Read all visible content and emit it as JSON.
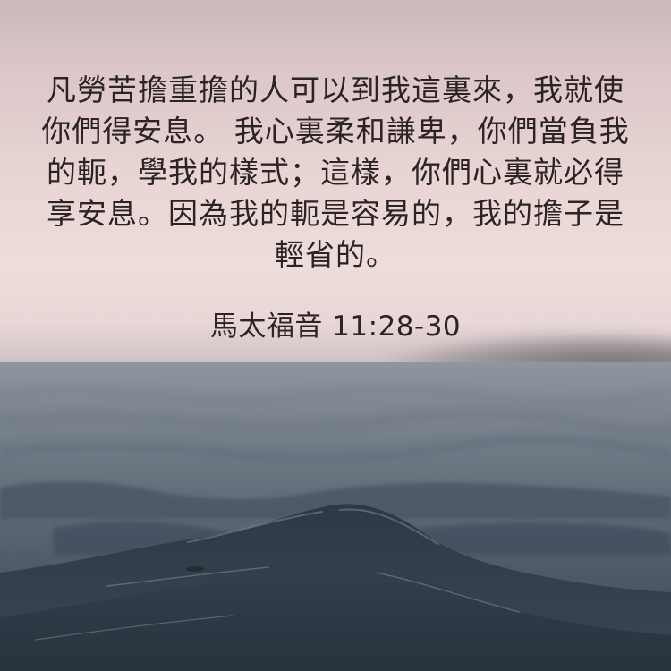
{
  "verse": {
    "text": "凡勞苦擔重擔的人可以到我這裏來，我就使你們得安息。 我心裏柔和謙卑，你們當負我的軛，學我的樣式；這樣，你們心裏就必得享安息。因為我的軛是容易的，我的擔子是輕省的。",
    "reference": "馬太福音 11:28-30"
  },
  "scene": {
    "background": "ocean-waves-at-dusk-photo",
    "sky_color": "#e8d4d3",
    "sea_color": "#4f5b68",
    "text_color": "#2b2324"
  }
}
